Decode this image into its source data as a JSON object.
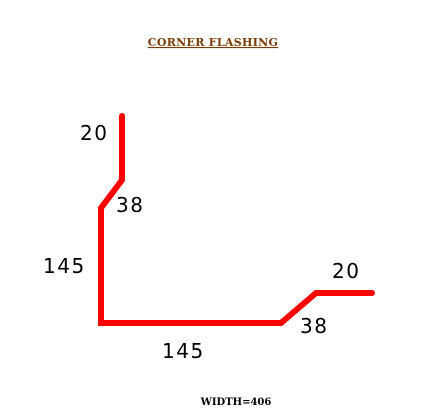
{
  "title": "CORNER  FLASHING",
  "width_label": "WIDTH=406",
  "colors": {
    "title": "#7a3b00",
    "profile": "#ff0000",
    "dimension_text": "#000000"
  },
  "segments": [
    {
      "id": "top-lip",
      "label": "20"
    },
    {
      "id": "top-bevel",
      "label": "38"
    },
    {
      "id": "vertical-leg",
      "label": "145"
    },
    {
      "id": "horizontal-leg",
      "label": "145"
    },
    {
      "id": "right-bevel",
      "label": "38"
    },
    {
      "id": "right-lip",
      "label": "20"
    }
  ]
}
